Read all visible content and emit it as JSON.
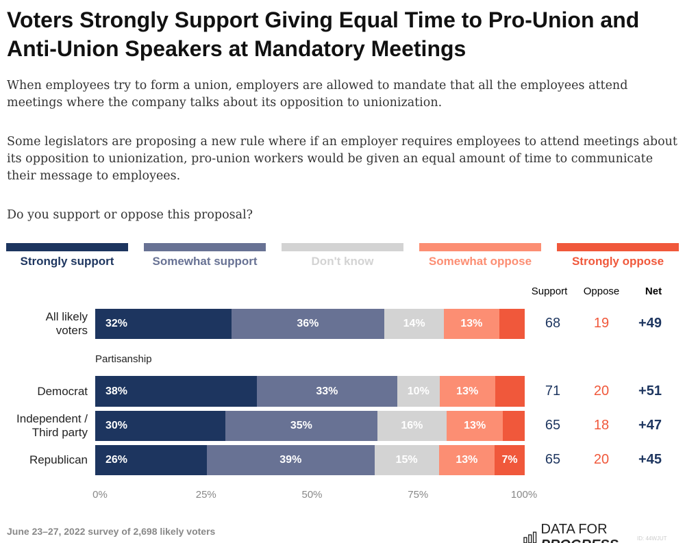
{
  "title": "Voters Strongly Support Giving Equal Time to Pro-Union and Anti-Union Speakers at Mandatory Meetings",
  "paragraphs": [
    "When employees try to form a union, employers are allowed to mandate that all the employees attend meetings where the company talks about its opposition to unionization.",
    "Some legislators are proposing a new rule where if an employer requires employees to attend meetings about its opposition to unionization, pro-union workers would be given an equal amount of time to communicate their message to employees.",
    "Do you support or oppose this proposal?"
  ],
  "footer": "June 23–27, 2022 survey of 2,698 likely voters",
  "logo": {
    "text_light": "DATA FOR ",
    "text_bold": "PROGRESS",
    "icon": "bar-chart-icon"
  },
  "watermark": "ID: 44WJUT",
  "chart_data": {
    "type": "bar",
    "orientation": "horizontal-stacked",
    "series": [
      {
        "name": "Strongly support",
        "color": "#1d355f",
        "label_color": "#1d355f"
      },
      {
        "name": "Somewhat support",
        "color": "#687294",
        "label_color": "#687294"
      },
      {
        "name": "Don't know",
        "color": "#d3d3d3",
        "label_color": "#d3d3d3"
      },
      {
        "name": "Somewhat oppose",
        "color": "#fc8e73",
        "label_color": "#fc8e73"
      },
      {
        "name": "Strongly oppose",
        "color": "#f0583b",
        "label_color": "#f0583b"
      }
    ],
    "rows": [
      {
        "label": "All likely voters",
        "values": [
          32,
          36,
          14,
          13,
          6
        ],
        "labels": [
          "32%",
          "36%",
          "14%",
          "13%",
          ""
        ],
        "support": "68",
        "oppose": "19",
        "net": "+49"
      },
      {
        "label": "Democrat",
        "values": [
          38,
          33,
          10,
          13,
          7
        ],
        "labels": [
          "38%",
          "33%",
          "10%",
          "13%",
          ""
        ],
        "support": "71",
        "oppose": "20",
        "net": "+51"
      },
      {
        "label": "Independent / Third party",
        "values": [
          30,
          35,
          16,
          13,
          5
        ],
        "labels": [
          "30%",
          "35%",
          "16%",
          "13%",
          ""
        ],
        "support": "65",
        "oppose": "18",
        "net": "+47"
      },
      {
        "label": "Republican",
        "values": [
          26,
          39,
          15,
          13,
          7
        ],
        "labels": [
          "26%",
          "39%",
          "15%",
          "13%",
          "7%"
        ],
        "support": "65",
        "oppose": "20",
        "net": "+45"
      }
    ],
    "group_label": "Partisanship",
    "columns": {
      "support": "Support",
      "oppose": "Oppose",
      "net": "Net"
    },
    "column_colors": {
      "support": "#1d355f",
      "oppose": "#f0583b",
      "net": "#1d355f"
    },
    "xticks": [
      "0%",
      "25%",
      "50%",
      "75%",
      "100%"
    ],
    "xlim": [
      0,
      100
    ]
  }
}
